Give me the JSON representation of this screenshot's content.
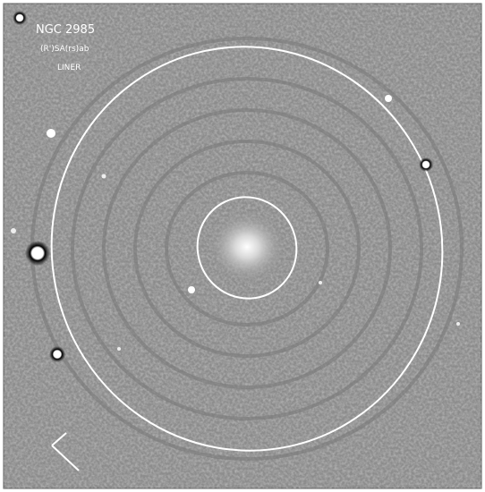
{
  "label": {
    "name": "NGC 2985",
    "morphology": "(R')SA(rs)ab",
    "activity": "LINER"
  }
}
